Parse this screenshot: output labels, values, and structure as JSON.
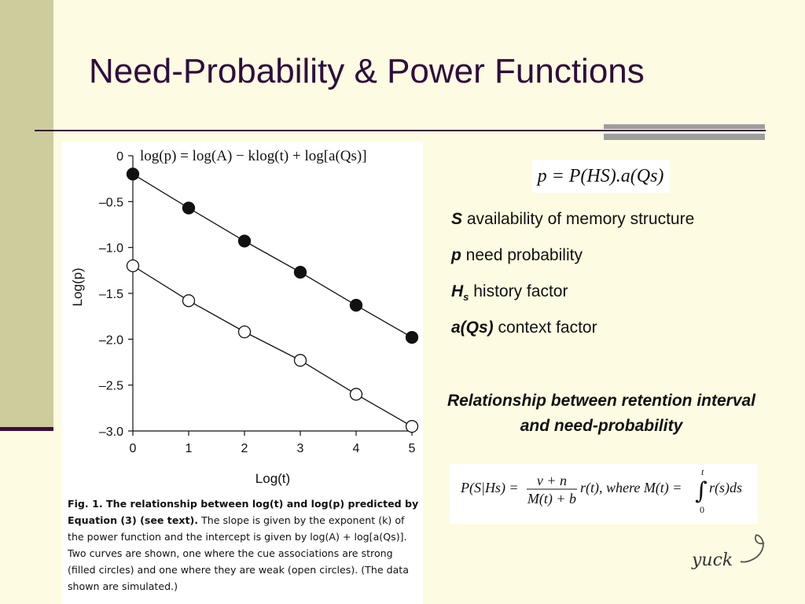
{
  "slide": {
    "title": "Need-Probability & Power Functions",
    "accent_color": "#3d0f3a",
    "background_color": "#fdfbe1",
    "band_color": "#cccc9c"
  },
  "chart_data": {
    "type": "line",
    "annotation": "log(p) = log(A) − klog(t) + log[a(Qs)]",
    "xlabel": "Log(t)",
    "ylabel": "Log(p)",
    "xlim": [
      0,
      5
    ],
    "ylim": [
      -3.0,
      0
    ],
    "x_ticks": [
      "0",
      "1",
      "2",
      "3",
      "4",
      "5"
    ],
    "y_ticks": [
      "0",
      "–0.5",
      "–1.0",
      "–1.5",
      "–2.0",
      "–2.5",
      "–3.0"
    ],
    "x": [
      0,
      1,
      2,
      3,
      4,
      5
    ],
    "series": [
      {
        "marker": "filled",
        "values": [
          -0.2,
          -0.57,
          -0.93,
          -1.27,
          -1.63,
          -1.98
        ]
      },
      {
        "marker": "open",
        "values": [
          -1.2,
          -1.58,
          -1.92,
          -2.23,
          -2.6,
          -2.95
        ]
      }
    ]
  },
  "caption": {
    "label": "Fig. 1. The relationship between log(t) and log(p) predicted by Equation (3) (see text).",
    "text": "The slope is given by the exponent (k) of the power function and the intercept is given by log(A) + log[a(Qs)]. Two curves are shown, one where the cue associations are strong (filled circles) and one where they are weak (open circles). (The data shown are simulated.)"
  },
  "equation": "p = P(HS).a(Qs)",
  "definitions": [
    {
      "key": "S",
      "text": "availability of memory structure"
    },
    {
      "key": "p",
      "text": "need probability"
    },
    {
      "key": "H",
      "sub": "s",
      "text": "history factor"
    },
    {
      "key": "a(Qs)",
      "text": "context factor"
    }
  ],
  "relationship": "Relationship between retention interval and need-probability",
  "formula": {
    "lhs": "P(S|Hs) =",
    "numerator": "v + n",
    "denominator": "M(t) + b",
    "rest": "r(t), where M(t) =",
    "integral_upper": "t",
    "integral_lower": "0",
    "integrand": "r(s)ds"
  },
  "signature": "yuck"
}
